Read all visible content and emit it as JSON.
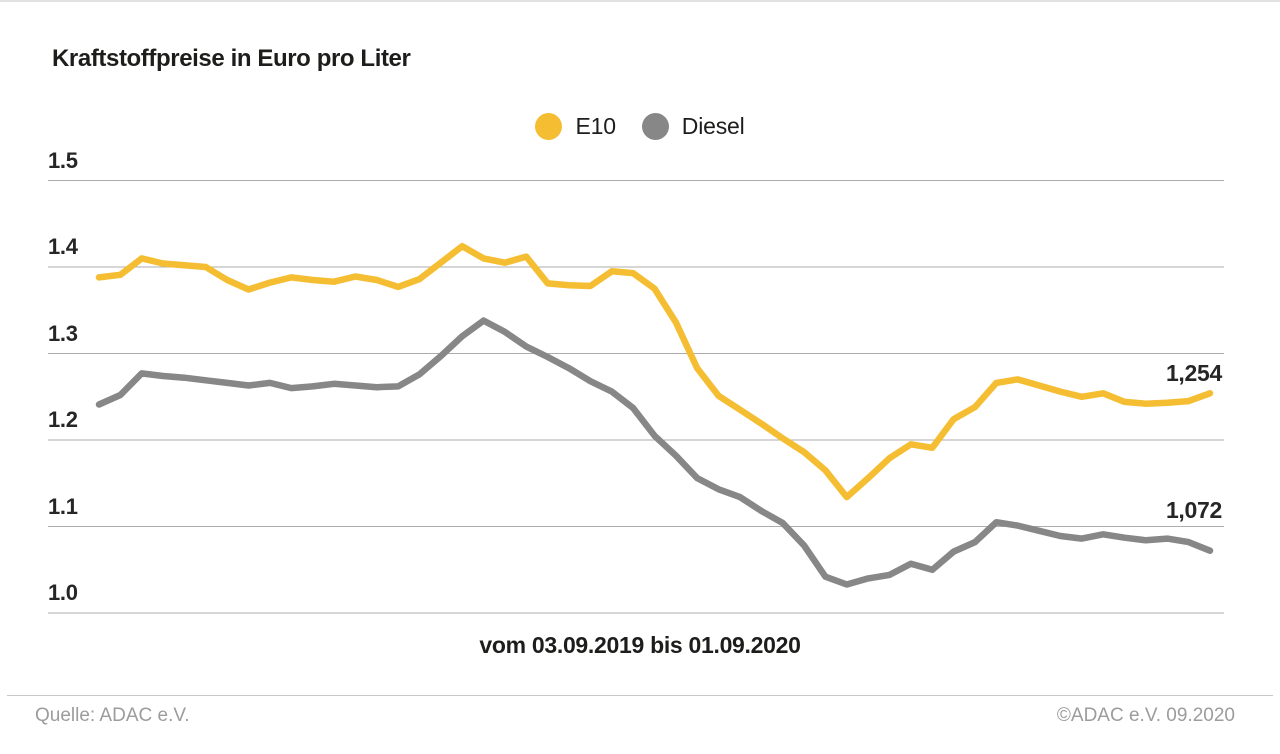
{
  "title": "Kraftstoffpreise in Euro pro Liter",
  "footer": {
    "source": "Quelle: ADAC e.V.",
    "copyright": "©ADAC e.V. 09.2020"
  },
  "chart_data": {
    "type": "line",
    "title": "Kraftstoffpreise in Euro pro Liter",
    "xlabel": "vom 03.09.2019 bis 01.09.2020",
    "ylabel": "Euro pro Liter",
    "ylim": [
      1.0,
      1.5
    ],
    "grid": true,
    "grid_color": "#acacac",
    "legend_position": "top-center",
    "y_ticks": [
      1.5,
      1.4,
      1.3,
      1.2,
      1.1,
      1.0
    ],
    "y_tick_labels": [
      "1.5",
      "1.4",
      "1.3",
      "1.2",
      "1.1",
      "1.0"
    ],
    "x_start_label": "03.09.2019",
    "x_end_label": "01.09.2020",
    "series": [
      {
        "name": "E10",
        "color": "#f5be32",
        "end_label": "1,254",
        "end_value": 1.254,
        "values": [
          1.388,
          1.391,
          1.41,
          1.404,
          1.402,
          1.4,
          1.385,
          1.374,
          1.382,
          1.388,
          1.385,
          1.383,
          1.389,
          1.385,
          1.377,
          1.386,
          1.405,
          1.424,
          1.41,
          1.405,
          1.412,
          1.381,
          1.379,
          1.378,
          1.395,
          1.393,
          1.375,
          1.336,
          1.283,
          1.251,
          1.235,
          1.219,
          1.202,
          1.186,
          1.165,
          1.134,
          1.156,
          1.179,
          1.195,
          1.191,
          1.224,
          1.238,
          1.266,
          1.27,
          1.263,
          1.256,
          1.25,
          1.254,
          1.244,
          1.242,
          1.243,
          1.245,
          1.254
        ]
      },
      {
        "name": "Diesel",
        "color": "#878787",
        "end_label": "1,072",
        "end_value": 1.072,
        "values": [
          1.241,
          1.252,
          1.277,
          1.274,
          1.272,
          1.269,
          1.266,
          1.263,
          1.266,
          1.26,
          1.262,
          1.265,
          1.263,
          1.261,
          1.262,
          1.276,
          1.297,
          1.32,
          1.338,
          1.325,
          1.308,
          1.296,
          1.283,
          1.268,
          1.256,
          1.237,
          1.205,
          1.182,
          1.156,
          1.143,
          1.134,
          1.118,
          1.104,
          1.078,
          1.042,
          1.033,
          1.04,
          1.044,
          1.057,
          1.05,
          1.071,
          1.082,
          1.105,
          1.101,
          1.095,
          1.089,
          1.086,
          1.091,
          1.087,
          1.084,
          1.086,
          1.082,
          1.072
        ]
      }
    ]
  }
}
